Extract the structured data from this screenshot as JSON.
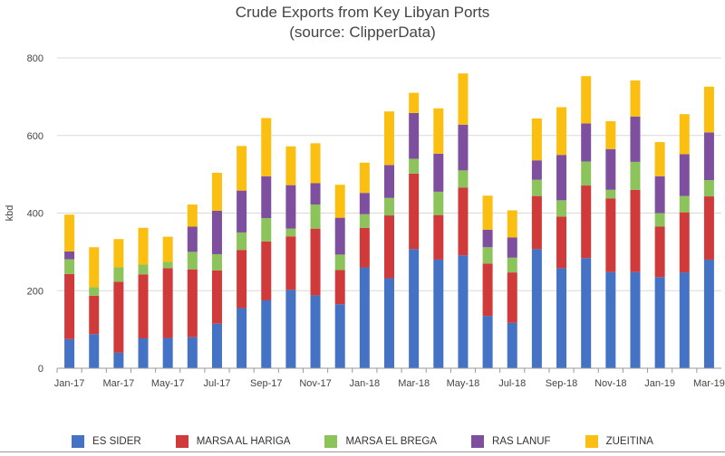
{
  "chart_data": {
    "type": "bar",
    "stacked": true,
    "title": "Crude Exports from Key Libyan Ports",
    "subtitle": "(source: ClipperData)",
    "ylabel": "kbd",
    "xlabel": "",
    "ylim": [
      0,
      800
    ],
    "yticks": [
      0,
      200,
      400,
      600,
      800
    ],
    "grid": true,
    "legend_position": "bottom",
    "categories": [
      "Jan-17",
      "Feb-17",
      "Mar-17",
      "Apr-17",
      "May-17",
      "Jun-17",
      "Jul-17",
      "Aug-17",
      "Sep-17",
      "Oct-17",
      "Nov-17",
      "Dec-17",
      "Jan-18",
      "Feb-18",
      "Mar-18",
      "Apr-18",
      "May-18",
      "Jun-18",
      "Jul-18",
      "Aug-18",
      "Sep-18",
      "Oct-18",
      "Nov-18",
      "Dec-18",
      "Jan-19",
      "Feb-19",
      "Mar-19"
    ],
    "xtick_labels": [
      "Jan-17",
      "Mar-17",
      "May-17",
      "Jul-17",
      "Sep-17",
      "Nov-17",
      "Jan-18",
      "Mar-18",
      "May-18",
      "Jul-18",
      "Sep-18",
      "Nov-18",
      "Jan-19",
      "Mar-19"
    ],
    "series": [
      {
        "name": "ES SIDER",
        "color": "#4472C4",
        "values": [
          75,
          88,
          40,
          77,
          78,
          80,
          115,
          155,
          175,
          202,
          188,
          165,
          260,
          232,
          307,
          280,
          291,
          135,
          117,
          307,
          258,
          284,
          248,
          248,
          235,
          247,
          280
        ]
      },
      {
        "name": "MARSA AL HARIGA",
        "color": "#D03A3A",
        "values": [
          168,
          99,
          183,
          165,
          180,
          175,
          137,
          150,
          152,
          138,
          172,
          88,
          102,
          162,
          195,
          115,
          175,
          135,
          130,
          137,
          133,
          187,
          190,
          212,
          130,
          155,
          163
        ]
      },
      {
        "name": "MARSA EL BREGA",
        "color": "#8CC35A",
        "values": [
          38,
          22,
          37,
          25,
          16,
          45,
          42,
          45,
          60,
          20,
          62,
          40,
          35,
          45,
          38,
          60,
          44,
          42,
          38,
          42,
          42,
          62,
          22,
          72,
          35,
          42,
          42
        ]
      },
      {
        "name": "RAS LANUF",
        "color": "#7E4F9E",
        "values": [
          20,
          0,
          0,
          0,
          0,
          65,
          112,
          108,
          108,
          112,
          55,
          95,
          55,
          85,
          118,
          98,
          118,
          45,
          52,
          50,
          117,
          98,
          105,
          117,
          95,
          108,
          123
        ]
      },
      {
        "name": "ZUEITINA",
        "color": "#FBBF12",
        "values": [
          95,
          103,
          73,
          95,
          65,
          57,
          98,
          115,
          150,
          100,
          103,
          85,
          78,
          138,
          52,
          117,
          132,
          88,
          70,
          108,
          123,
          122,
          72,
          93,
          88,
          103,
          118
        ]
      }
    ]
  }
}
